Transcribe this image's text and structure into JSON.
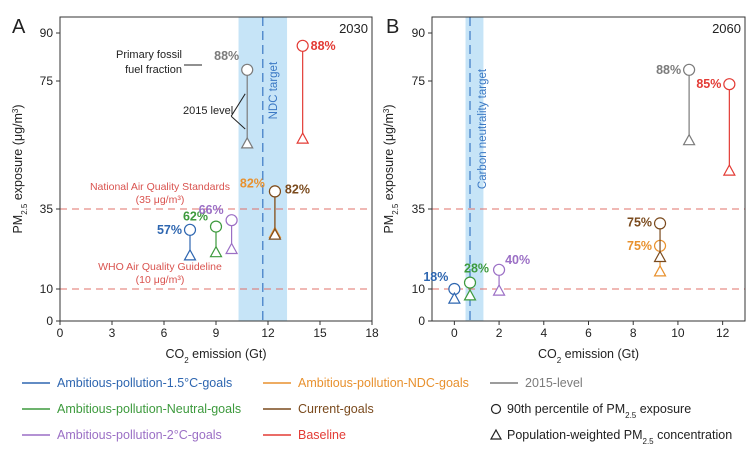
{
  "chart_data": [
    {
      "type": "scatter",
      "panel_label": "A",
      "year": "2030",
      "xlabel_main": "CO",
      "xlabel_sub": "2",
      "xlabel_tail": " emission (Gt)",
      "ylabel_a": "PM",
      "ylabel_sub": "2.5",
      "ylabel_b": " exposure (μg/m",
      "ylabel_sup": "3",
      "ylabel_c": ")",
      "xlim": [
        0,
        18
      ],
      "ylim": [
        0,
        95
      ],
      "xticks": [
        "0",
        "3",
        "6",
        "9",
        "12",
        "15",
        "18"
      ],
      "xtick_values": [
        0,
        3,
        6,
        9,
        12,
        15,
        18
      ],
      "yticks": [
        "0",
        "10",
        "35",
        "75",
        "90"
      ],
      "ytick_values": [
        0,
        10,
        35,
        75,
        90
      ],
      "band": {
        "x_from": 10.3,
        "x_to": 13.1,
        "color": "#c6e4f7",
        "line_x": 11.7,
        "label": "NDC target"
      },
      "hlines": [
        {
          "y": 35,
          "color": "#e0706a",
          "label_line1": "National Air Quality Standards",
          "label_line2": "(35 μg/m³)"
        },
        {
          "y": 10,
          "color": "#e0706a",
          "label_line1": "WHO Air Quality Guideline",
          "label_line2": "(10 μg/m³)"
        }
      ],
      "series": [
        {
          "name": "Ambitious-pollution-1.5°C-goals",
          "color": "#2e66b0",
          "x": 7.5,
          "p90": 28.5,
          "popw": 20.5,
          "pct": "57%"
        },
        {
          "name": "Ambitious-pollution-Neutral-goals",
          "color": "#3d9a3d",
          "x": 9.0,
          "p90": 29.5,
          "popw": 21.5,
          "pct": "62%"
        },
        {
          "name": "Ambitious-pollution-2°C-goals",
          "color": "#9b6fc5",
          "x": 9.9,
          "p90": 31.5,
          "popw": 22.5,
          "pct": "66%"
        },
        {
          "name": "Ambitious-pollution-NDC-goals",
          "color": "#e8912e",
          "x": 12.4,
          "p90": 40.5,
          "popw": 27.5,
          "pct": "82%"
        },
        {
          "name": "Current-goals",
          "color": "#7a4a1d",
          "x": 12.4,
          "p90": 40.5,
          "popw": 27.0,
          "pct": "82%"
        },
        {
          "name": "2015-level",
          "color": "#7b7b7b",
          "x": 10.8,
          "p90": 78.5,
          "popw": 55.5,
          "pct": "88%"
        },
        {
          "name": "Baseline",
          "color": "#e33b35",
          "x": 14.0,
          "p90": 86.0,
          "popw": 57.0,
          "pct": "88%"
        }
      ],
      "annotations": {
        "fossil_line1": "Primary fossil",
        "fossil_line2": "fuel fraction",
        "level2015": "2015 level"
      }
    },
    {
      "type": "scatter",
      "panel_label": "B",
      "year": "2060",
      "xlabel_main": "CO",
      "xlabel_sub": "2",
      "xlabel_tail": " emission (Gt)",
      "ylabel_a": "PM",
      "ylabel_sub": "2.5",
      "ylabel_b": " exposure (μg/m",
      "ylabel_sup": "3",
      "ylabel_c": ")",
      "xlim": [
        -1,
        13
      ],
      "ylim": [
        0,
        95
      ],
      "xticks": [
        "0",
        "2",
        "4",
        "6",
        "8",
        "10",
        "12"
      ],
      "xtick_values": [
        0,
        2,
        4,
        6,
        8,
        10,
        12
      ],
      "yticks": [
        "0",
        "10",
        "35",
        "75",
        "90"
      ],
      "ytick_values": [
        0,
        10,
        35,
        75,
        90
      ],
      "band": {
        "x_from": 0.5,
        "x_to": 1.3,
        "color": "#c6e4f7",
        "line_x": 0.7,
        "label": "Carbon neutrality target"
      },
      "hlines": [
        {
          "y": 35,
          "color": "#e0706a"
        },
        {
          "y": 10,
          "color": "#e0706a"
        }
      ],
      "series": [
        {
          "name": "Ambitious-pollution-1.5°C-goals",
          "color": "#2e66b0",
          "x": 0.0,
          "p90": 10.0,
          "popw": 7.0,
          "pct": "18%"
        },
        {
          "name": "Ambitious-pollution-Neutral-goals",
          "color": "#3d9a3d",
          "x": 0.7,
          "p90": 12.0,
          "popw": 8.0,
          "pct": "28%"
        },
        {
          "name": "Ambitious-pollution-2°C-goals",
          "color": "#9b6fc5",
          "x": 2.0,
          "p90": 16.0,
          "popw": 9.5,
          "pct": "40%"
        },
        {
          "name": "Ambitious-pollution-NDC-goals",
          "color": "#e8912e",
          "x": 9.2,
          "p90": 23.5,
          "popw": 15.5,
          "pct": "75%"
        },
        {
          "name": "Current-goals",
          "color": "#7a4a1d",
          "x": 9.2,
          "p90": 30.5,
          "popw": 20.0,
          "pct": "75%"
        },
        {
          "name": "2015-level",
          "color": "#7b7b7b",
          "x": 10.5,
          "p90": 78.5,
          "popw": 56.5,
          "pct": "88%"
        },
        {
          "name": "Baseline",
          "color": "#e33b35",
          "x": 12.3,
          "p90": 74.0,
          "popw": 47.0,
          "pct": "85%"
        }
      ]
    }
  ],
  "legend": {
    "lines": [
      {
        "label": "Ambitious-pollution-1.5°C-goals",
        "color": "#2e66b0"
      },
      {
        "label": "Ambitious-pollution-Neutral-goals",
        "color": "#3d9a3d"
      },
      {
        "label": "Ambitious-pollution-2°C-goals",
        "color": "#9b6fc5"
      },
      {
        "label": "Ambitious-pollution-NDC-goals",
        "color": "#e8912e"
      },
      {
        "label": "Current-goals",
        "color": "#7a4a1d"
      },
      {
        "label": "Baseline",
        "color": "#e33b35"
      },
      {
        "label": "2015-level",
        "color": "#7b7b7b"
      }
    ],
    "marker_circle_a": "90th percentile of PM",
    "marker_circle_sub": "2.5",
    "marker_circle_b": " exposure",
    "marker_triangle_a": "Population-weighted PM",
    "marker_triangle_sub": "2.5",
    "marker_triangle_b": " concentration"
  }
}
